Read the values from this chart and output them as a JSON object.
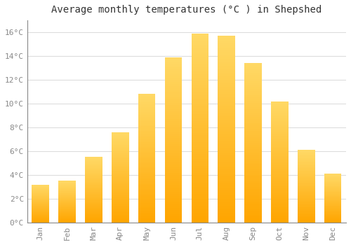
{
  "months": [
    "Jan",
    "Feb",
    "Mar",
    "Apr",
    "May",
    "Jun",
    "Jul",
    "Aug",
    "Sep",
    "Oct",
    "Nov",
    "Dec"
  ],
  "values": [
    3.2,
    3.5,
    5.5,
    7.6,
    10.8,
    13.9,
    15.9,
    15.7,
    13.4,
    10.2,
    6.1,
    4.1
  ],
  "title": "Average monthly temperatures (°C ) in Shepshed",
  "bar_color_bottom": "#FFA500",
  "bar_color_top": "#FFD966",
  "background_color": "#FFFFFF",
  "grid_color": "#DDDDDD",
  "ylim": [
    0,
    17
  ],
  "ytick_step": 2,
  "title_fontsize": 10,
  "tick_fontsize": 8,
  "tick_color": "#888888"
}
